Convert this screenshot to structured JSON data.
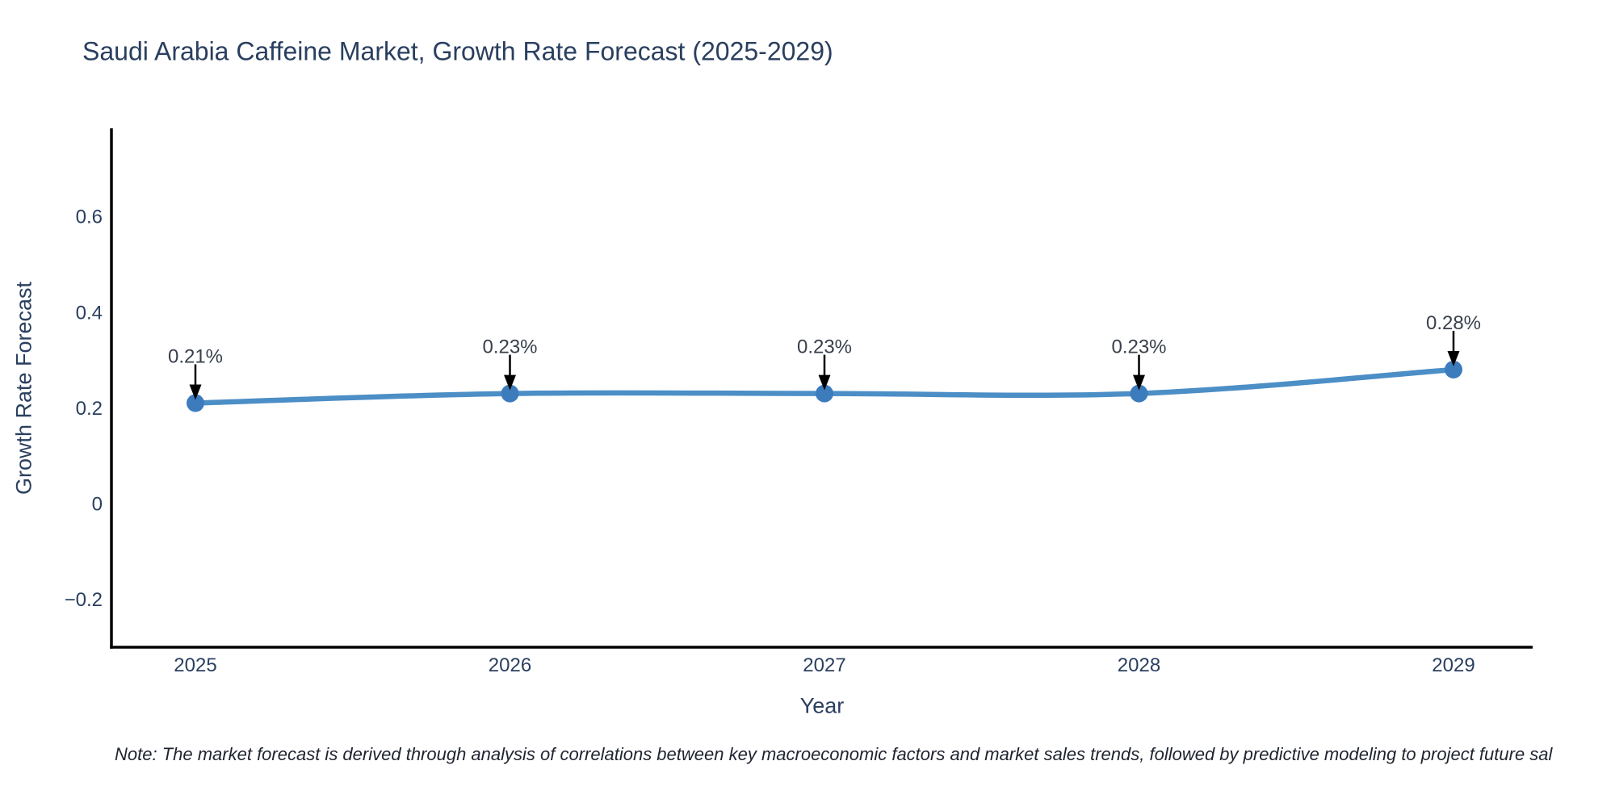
{
  "note": {
    "text": "Note: The market forecast is derived through analysis of correlations between key macroeconomic factors and market sales trends, followed by predictive modeling to project future sal"
  },
  "chart_data": {
    "type": "line",
    "title": "Saudi Arabia Caffeine Market, Growth Rate Forecast (2025-2029)",
    "xlabel": "Year",
    "ylabel": "Growth Rate Forecast",
    "x": [
      2025,
      2026,
      2027,
      2028,
      2029
    ],
    "xtick_labels": [
      "2025",
      "2026",
      "2027",
      "2028",
      "2029"
    ],
    "values": [
      0.21,
      0.23,
      0.23,
      0.23,
      0.28
    ],
    "point_labels": [
      "0.21%",
      "0.23%",
      "0.23%",
      "0.23%",
      "0.28%"
    ],
    "yticks": [
      -0.2,
      0,
      0.2,
      0.4,
      0.6
    ],
    "ytick_labels": [
      "−0.2",
      "0",
      "0.2",
      "0.4",
      "0.6"
    ],
    "ylim": [
      -0.3,
      0.69
    ],
    "xlim": [
      2024.0,
      2029.25
    ],
    "grid": false,
    "legend": "none",
    "line_shape": "spline",
    "marker": "circle",
    "annotation_style": "arrow-down-to-point",
    "colors": {
      "line": "#4c8ec6",
      "marker": "#3c7cbd",
      "axis": "#000000",
      "text": "#2a3f5f",
      "annotation_text": "#39404b",
      "annotation_arrow": "#000000",
      "background": "#ffffff"
    }
  }
}
